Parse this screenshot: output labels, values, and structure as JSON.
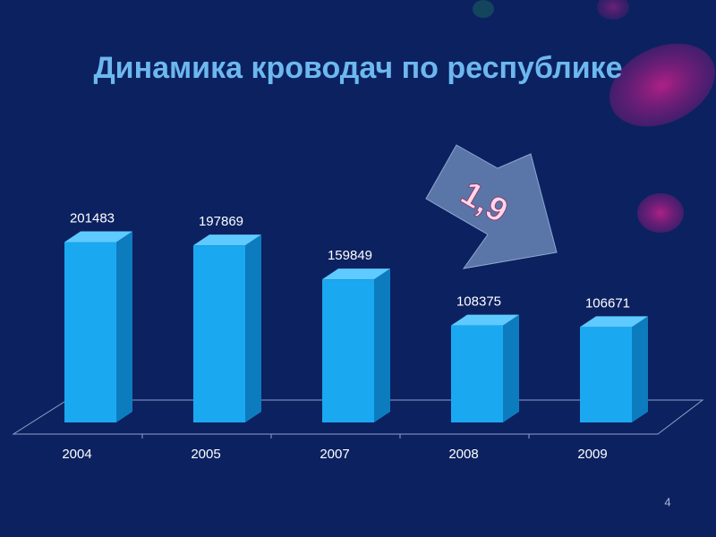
{
  "chart_data": {
    "type": "bar",
    "title": "Динамика кроводач по республике",
    "categories": [
      "2004",
      "2005",
      "2007",
      "2008",
      "2009"
    ],
    "values": [
      201483,
      197869,
      159849,
      108375,
      106671
    ],
    "color": "#1aa9f0",
    "annotation": "1,9"
  },
  "slide_number": "4"
}
